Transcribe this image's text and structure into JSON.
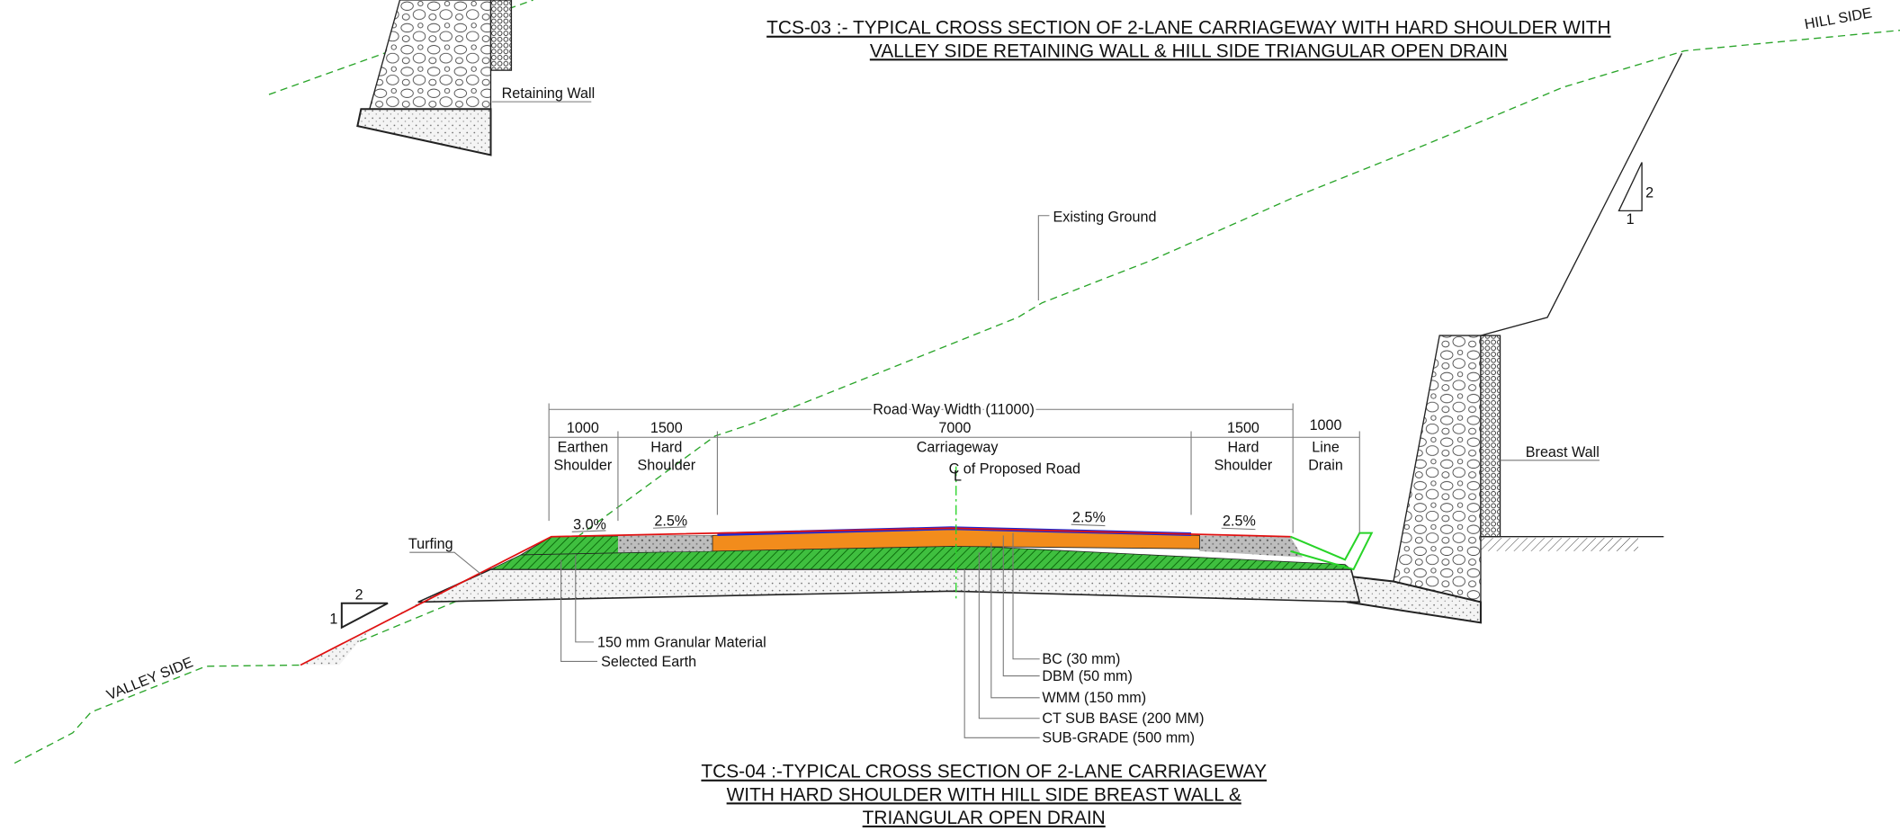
{
  "titles": {
    "top": [
      "TCS-03 :- TYPICAL CROSS SECTION OF 2-LANE CARRIAGEWAY WITH HARD SHOULDER WITH",
      "VALLEY SIDE RETAINING WALL & HILL SIDE TRIANGULAR OPEN DRAIN"
    ],
    "bottom": [
      "TCS-04 :-TYPICAL CROSS SECTION OF 2-LANE CARRIAGEWAY",
      "WITH HARD SHOULDER WITH HILL SIDE BREAST WALL &",
      "TRIANGULAR OPEN DRAIN"
    ]
  },
  "labels": {
    "retaining_wall": "Retaining Wall",
    "hill_side": "HILL SIDE",
    "valley_side": "VALLEY SIDE",
    "existing_ground": "Existing Ground",
    "breast_wall": "Breast Wall",
    "turfing": "Turfing",
    "centerline": "C of Proposed Road",
    "centerline_symbol": "L"
  },
  "slope_triangles": [
    {
      "rise": "2",
      "run": "1"
    },
    {
      "rise": "2",
      "run": "1"
    }
  ],
  "dimensions": {
    "roadway_width": "Road Way Width (11000)",
    "segments": [
      {
        "value": "1000",
        "label": [
          "Earthen",
          "Shoulder"
        ]
      },
      {
        "value": "1500",
        "label": [
          "Hard",
          "Shoulder"
        ]
      },
      {
        "value": "7000",
        "label": [
          "Carriageway"
        ]
      },
      {
        "value": "1500",
        "label": [
          "Hard",
          "Shoulder"
        ]
      },
      {
        "value": "1000",
        "label": [
          "Line",
          "Drain"
        ]
      }
    ]
  },
  "cross_slopes": [
    "3.0%",
    "2.5%",
    "2.5%",
    "2.5%"
  ],
  "fill_layers": [
    "150 mm Granular Material",
    "Selected Earth"
  ],
  "pavement_layers": [
    "BC (30 mm)",
    "DBM (50 mm)",
    "WMM  (150 mm)",
    "CT SUB BASE (200 MM)",
    "SUB-GRADE (500 mm)"
  ]
}
